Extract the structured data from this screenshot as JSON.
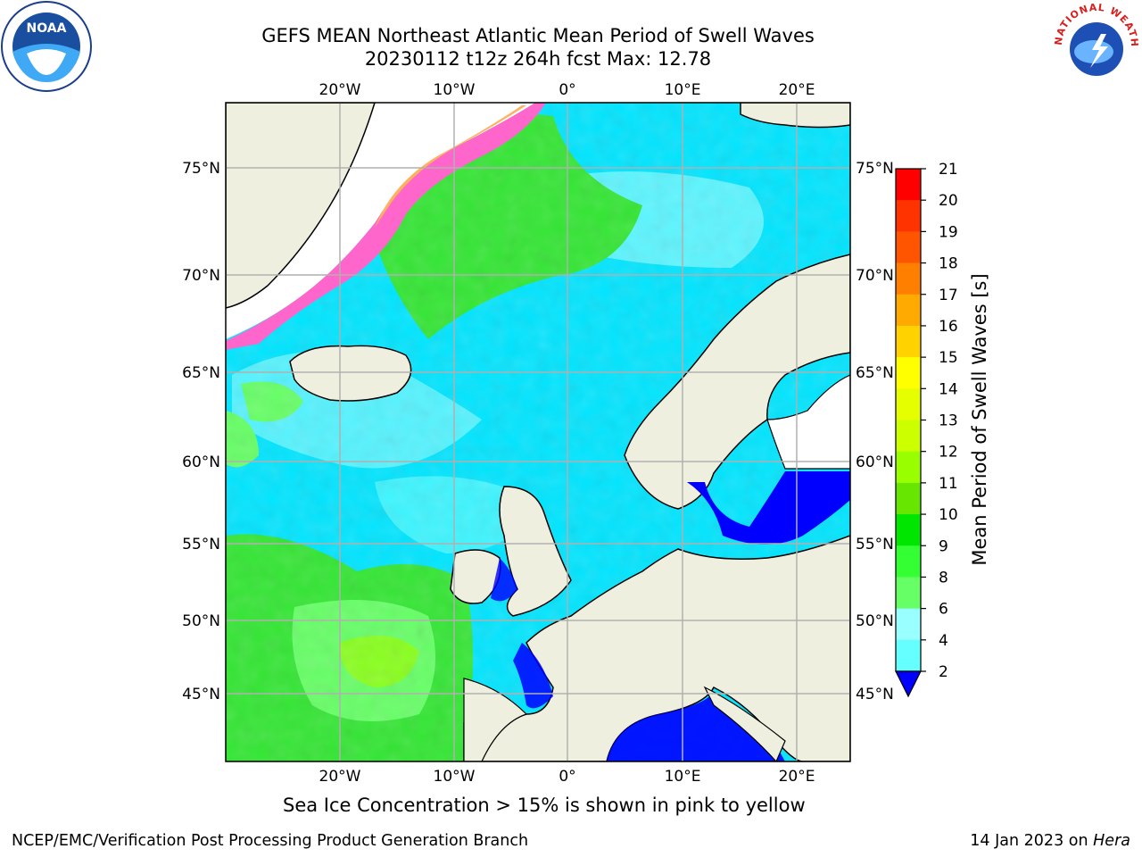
{
  "title": {
    "line1": "GEFS MEAN Northeast Atlantic Mean Period of Swell Waves",
    "line2": "20230112 t12z 264h fcst   Max: 12.78"
  },
  "map": {
    "projection_label_lon": [
      "20°W",
      "10°W",
      "0°",
      "10°E",
      "20°E"
    ],
    "lat_labels": [
      "75°N",
      "70°N",
      "65°N",
      "60°N",
      "55°N",
      "50°N",
      "45°N"
    ],
    "colors": {
      "ocean_low": "#0000ff",
      "ocean_mid": "#00e5ff",
      "ocean_light": "#99ffff",
      "swell_green": "#33e633",
      "swell_lightgreen": "#66ff66",
      "land": "#efefdf",
      "ice_pink": "#ff66cc",
      "ice_orange": "#ffb060"
    }
  },
  "colorbar": {
    "label": "Mean Period of Swell Waves [s]",
    "ticks": [
      "21",
      "20",
      "19",
      "18",
      "17",
      "16",
      "15",
      "14",
      "13",
      "12",
      "11",
      "10",
      "9",
      "8",
      "6",
      "4",
      "2"
    ],
    "colors": [
      "#ff0000",
      "#ff3300",
      "#ff5500",
      "#ff7f00",
      "#ffaa00",
      "#ffd200",
      "#ffff00",
      "#e6ff00",
      "#ccff00",
      "#99ff00",
      "#66e600",
      "#00e600",
      "#33ff33",
      "#66ff66",
      "#99ffff",
      "#66ffff",
      "#00e5ff",
      "#0099ff"
    ],
    "extend_color": "#0000ff"
  },
  "note": "Sea Ice Concentration > 15% is shown in pink to yellow",
  "footer": {
    "left": "NCEP/EMC/Verification Post Processing Product Generation Branch",
    "right_prefix": "14 Jan 2023 on ",
    "right_host": "Hera"
  },
  "logos": {
    "noaa": "NOAA",
    "nws": "NATIONAL WEATHER SERVICE"
  }
}
